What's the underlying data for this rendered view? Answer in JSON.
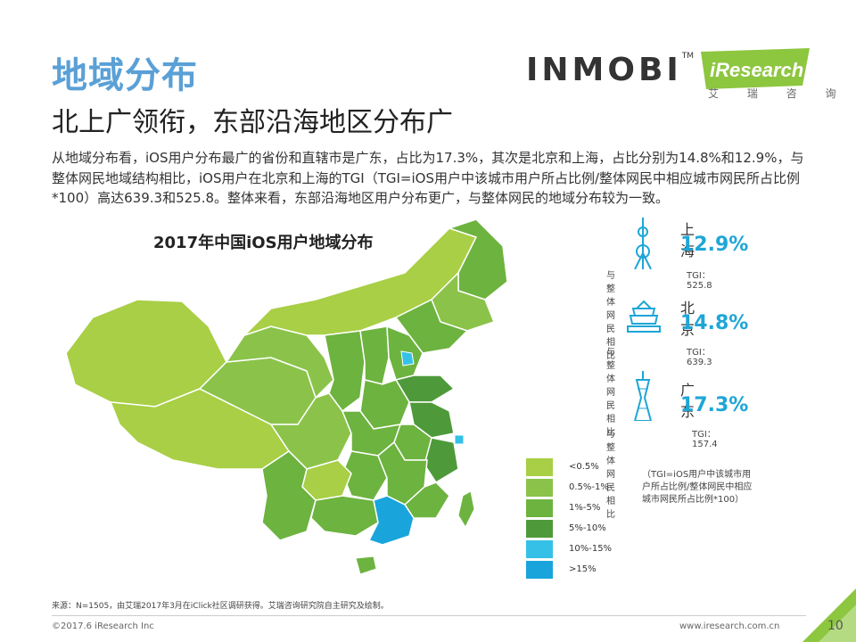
{
  "header": {
    "title": "地域分布",
    "subtitle": "北上广领衔，东部沿海地区分布广",
    "intro": "从地域分布看，iOS用户分布最广的省份和直辖市是广东，占比为17.3%，其次是北京和上海，占比分别为14.8%和12.9%，与整体网民地域结构相比，iOS用户在北京和上海的TGI（TGI=iOS用户中该城市用户所占比例/整体网民中相应城市网民所占比例*100）高达639.3和525.8。整体来看，东部沿海地区用户分布更广，与整体网民的地域分布较为一致。"
  },
  "logos": {
    "inmobi": "INMOBI",
    "inmobi_tm": "TM",
    "iresearch": "iResearch",
    "iresearch_cn": "艾 瑞 咨 询"
  },
  "map": {
    "title": "2017年中国iOS用户地域分布"
  },
  "cities": [
    {
      "name": "上海",
      "pct": "12.9%",
      "compare": "与整体网民相比",
      "tgi": "TGI：525.8",
      "icon": "oriental-pearl-tower-icon"
    },
    {
      "name": "北京",
      "pct": "14.8%",
      "compare": "与整体网民相比",
      "tgi": "TGI：639.3",
      "icon": "temple-of-heaven-icon"
    },
    {
      "name": "广东",
      "pct": "17.3%",
      "compare": "与整体网民相比",
      "tgi": "TGI：157.4",
      "icon": "canton-tower-icon"
    }
  ],
  "legend": [
    {
      "label": "<0.5%",
      "color": "#a8cf45"
    },
    {
      "label": "0.5%-1%",
      "color": "#8bc34a"
    },
    {
      "label": "1%-5%",
      "color": "#6db33f"
    },
    {
      "label": "5%-10%",
      "color": "#4e9a3a"
    },
    {
      "label": "10%-15%",
      "color": "#35c0e8"
    },
    {
      "label": ">15%",
      "color": "#19a5dc"
    }
  ],
  "tgi_note": "（TGI=iOS用户中该城市用户所占比例/整体网民中相应城市网民所占比例*100）",
  "footer": {
    "source": "来源：N=1505，由艾瑞2017年3月在iClick社区调研获得。艾瑞咨询研究院自主研究及绘制。",
    "copyright": "©2017.6 iResearch Inc",
    "site": "www.iresearch.com.cn",
    "page": "10"
  }
}
